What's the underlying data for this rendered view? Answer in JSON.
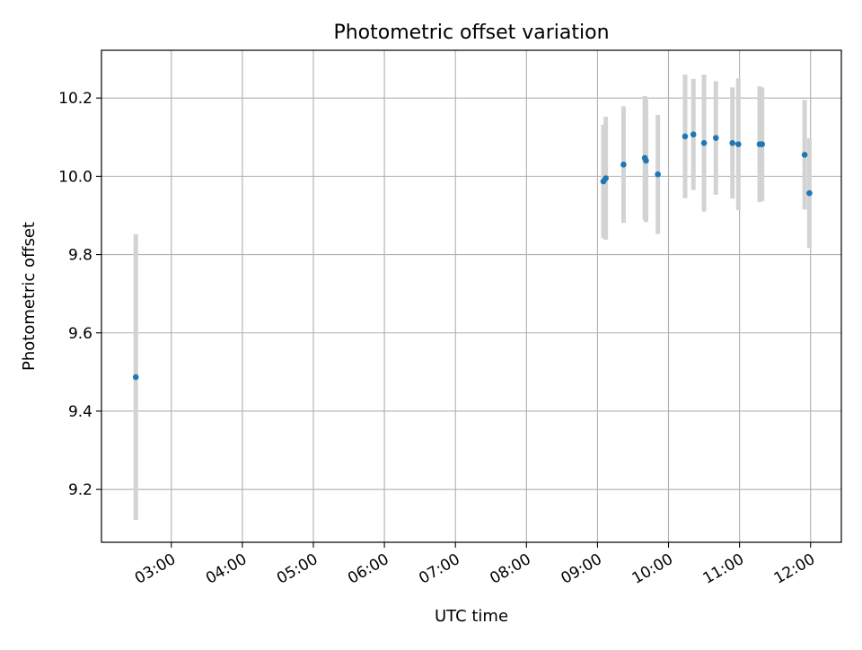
{
  "chart_data": {
    "type": "scatter",
    "title": "Photometric offset variation",
    "xlabel": "UTC time",
    "ylabel": "Photometric offset",
    "x_ticks": [
      "03:00",
      "04:00",
      "05:00",
      "06:00",
      "07:00",
      "08:00",
      "09:00",
      "10:00",
      "11:00",
      "12:00"
    ],
    "y_ticks": [
      9.2,
      9.4,
      9.6,
      9.8,
      10.0,
      10.2
    ],
    "xlim": [
      "02:01",
      "12:26"
    ],
    "ylim": [
      9.065,
      10.322
    ],
    "grid": true,
    "colors": {
      "point": "#1f77b4",
      "errorbar": "#d3d3d3",
      "grid": "#b0b0b0"
    },
    "points": [
      {
        "x": "02:30",
        "y": 9.487,
        "yerr": 0.365
      },
      {
        "x": "09:05",
        "y": 9.987,
        "yerr": 0.145
      },
      {
        "x": "09:07",
        "y": 9.995,
        "yerr": 0.157
      },
      {
        "x": "09:22",
        "y": 10.03,
        "yerr": 0.149
      },
      {
        "x": "09:40",
        "y": 10.047,
        "yerr": 0.158
      },
      {
        "x": "09:41",
        "y": 10.04,
        "yerr": 0.157
      },
      {
        "x": "09:51",
        "y": 10.005,
        "yerr": 0.152
      },
      {
        "x": "10:14",
        "y": 10.102,
        "yerr": 0.158
      },
      {
        "x": "10:21",
        "y": 10.107,
        "yerr": 0.142
      },
      {
        "x": "10:30",
        "y": 10.085,
        "yerr": 0.175
      },
      {
        "x": "10:40",
        "y": 10.098,
        "yerr": 0.145
      },
      {
        "x": "10:54",
        "y": 10.085,
        "yerr": 0.142
      },
      {
        "x": "10:59",
        "y": 10.082,
        "yerr": 0.168
      },
      {
        "x": "11:17",
        "y": 10.082,
        "yerr": 0.148
      },
      {
        "x": "11:19",
        "y": 10.082,
        "yerr": 0.145
      },
      {
        "x": "11:55",
        "y": 10.055,
        "yerr": 0.14
      },
      {
        "x": "11:59",
        "y": 9.957,
        "yerr": 0.14
      }
    ]
  }
}
